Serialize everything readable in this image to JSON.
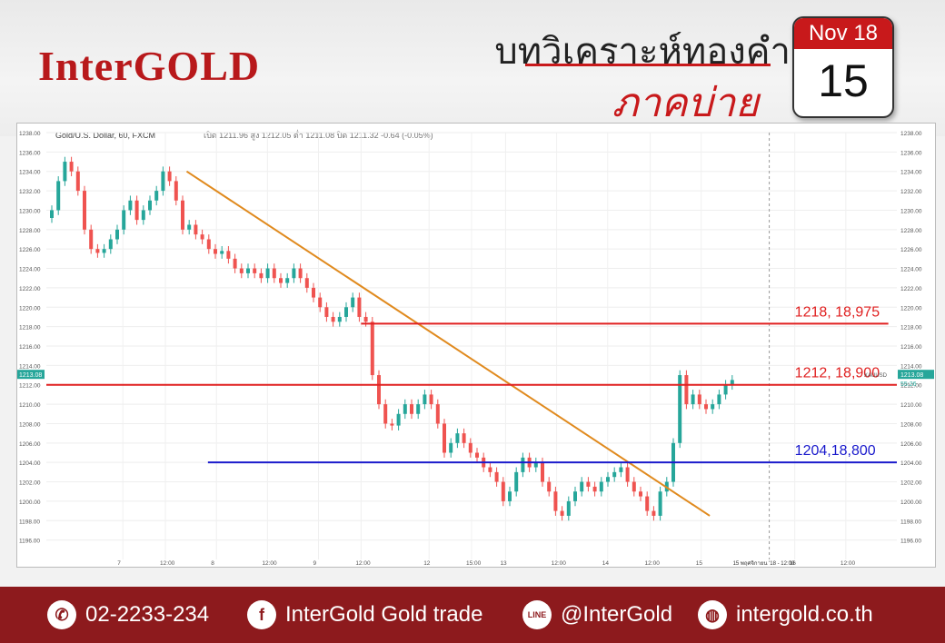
{
  "brand": {
    "logo": "InterGOLD"
  },
  "header": {
    "title": "บทวิเคราะห์ทองคำ",
    "subtitle": "ภาคบ่าย"
  },
  "calendar": {
    "month_year": "Nov 18",
    "day": "15"
  },
  "chart_header": {
    "symbol": "Gold/U.S. Dollar, 60, FXCM",
    "ohlc": "เปิด 1211.96 สูง 1212.05 ต่ำ 1211.08 ปิด 1211.32 -0.64 (-0.05%)"
  },
  "chart_data": {
    "type": "line",
    "title": "",
    "xlabel": "",
    "ylabel": "",
    "ylim": [
      1194,
      1238
    ],
    "y_ticks": [
      "1238.00",
      "1236.00",
      "1234.00",
      "1232.00",
      "1230.00",
      "1228.00",
      "1226.00",
      "1224.00",
      "1222.00",
      "1220.00",
      "1218.00",
      "1216.00",
      "1214.00",
      "1212.00",
      "1210.00",
      "1208.00",
      "1206.00",
      "1204.00",
      "1202.00",
      "1200.00",
      "1198.00",
      "1196.00"
    ],
    "x_ticks": [
      "7",
      "12:00",
      "8",
      "12:00",
      "9",
      "12:00",
      "12",
      "15:00",
      "13",
      "12:00",
      "14",
      "12:00",
      "15",
      "16",
      "12:00"
    ],
    "x_tick_pos": [
      0.09,
      0.14,
      0.2,
      0.26,
      0.32,
      0.37,
      0.45,
      0.5,
      0.54,
      0.6,
      0.66,
      0.71,
      0.77,
      0.88,
      0.94
    ],
    "price_label": "1213.08",
    "countdown_label": "55:26",
    "symbol_tag": "XAUUSD",
    "crosshair_label": "15 พฤศจิกายน '18 - 12:00",
    "levels": [
      {
        "value": 1218.3,
        "label": "1218, 18,975",
        "color": "#e02020"
      },
      {
        "value": 1212,
        "label": "1212, 18,900",
        "color": "#e02020"
      },
      {
        "value": 1204,
        "label": "1204,18,800",
        "color": "#1a1acc"
      }
    ],
    "trendline": {
      "from": [
        0.165,
        1234
      ],
      "to": [
        0.78,
        1198.5
      ],
      "color": "#e08a1e"
    },
    "series": [
      {
        "close": [
          1230,
          1233,
          1235,
          1234,
          1232,
          1228,
          1226,
          1225.6,
          1226,
          1227,
          1228,
          1230,
          1231,
          1229,
          1230,
          1231,
          1232,
          1234,
          1233,
          1231,
          1228,
          1228.5,
          1227.5,
          1227,
          1226,
          1225.5,
          1225.8,
          1225,
          1224,
          1223.5,
          1224,
          1223.5,
          1223,
          1224,
          1223,
          1222.5,
          1223,
          1224,
          1223,
          1222,
          1221,
          1220,
          1219,
          1218.5,
          1219,
          1220,
          1221,
          1219,
          1218.5,
          1213,
          1210,
          1208,
          1207.8,
          1209,
          1210,
          1209,
          1210,
          1211,
          1210,
          1208,
          1205,
          1206,
          1207,
          1206,
          1205,
          1204.5,
          1203.5,
          1203,
          1202,
          1200,
          1201,
          1203,
          1204.5,
          1203.5,
          1204,
          1202,
          1201,
          1199,
          1198.5,
          1200,
          1201,
          1202,
          1201.5,
          1201,
          1202,
          1202.5,
          1203,
          1203.5,
          1202,
          1201,
          1200.5,
          1199,
          1198.5,
          1201,
          1202,
          1206,
          1213,
          1210,
          1211,
          1210,
          1209.5,
          1210,
          1211,
          1212,
          1212.5
        ]
      }
    ]
  },
  "footer": {
    "phone": "02-2233-234",
    "facebook": "InterGold Gold trade",
    "line": "@InterGold",
    "website": "intergold.co.th",
    "line_icon_text": "LINE"
  },
  "colors": {
    "brand_red": "#b8191b",
    "footer_bg": "#8d1a1d",
    "up": "#26a69a",
    "down": "#ef5350"
  }
}
